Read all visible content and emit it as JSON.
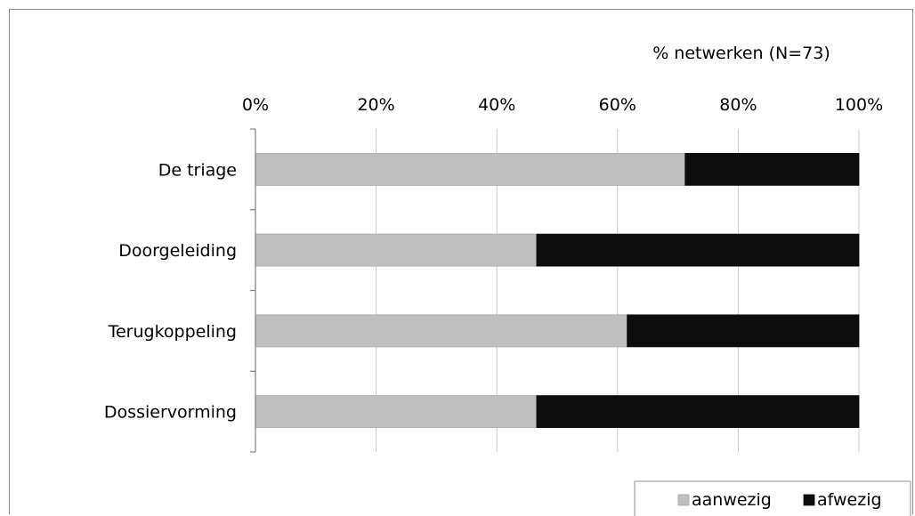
{
  "chart_data": {
    "type": "bar",
    "orientation": "horizontal",
    "stacked": true,
    "xlabel": "% netwerken (N=73)",
    "x_ticks": [
      "0%",
      "20%",
      "40%",
      "60%",
      "80%",
      "100%"
    ],
    "xlim": [
      0,
      100
    ],
    "grid": true,
    "legend_position": "bottom-right",
    "categories": [
      "De triage",
      "Doorgeleiding",
      "Terugkoppeling",
      "Dossiervorming"
    ],
    "series": [
      {
        "name": "aanwezig",
        "color": "#bfbfbf",
        "values": [
          71.2,
          46.6,
          61.6,
          46.6
        ]
      },
      {
        "name": "afwezig",
        "color": "#0d0d0d",
        "values": [
          28.8,
          53.4,
          38.4,
          53.4
        ]
      }
    ]
  }
}
